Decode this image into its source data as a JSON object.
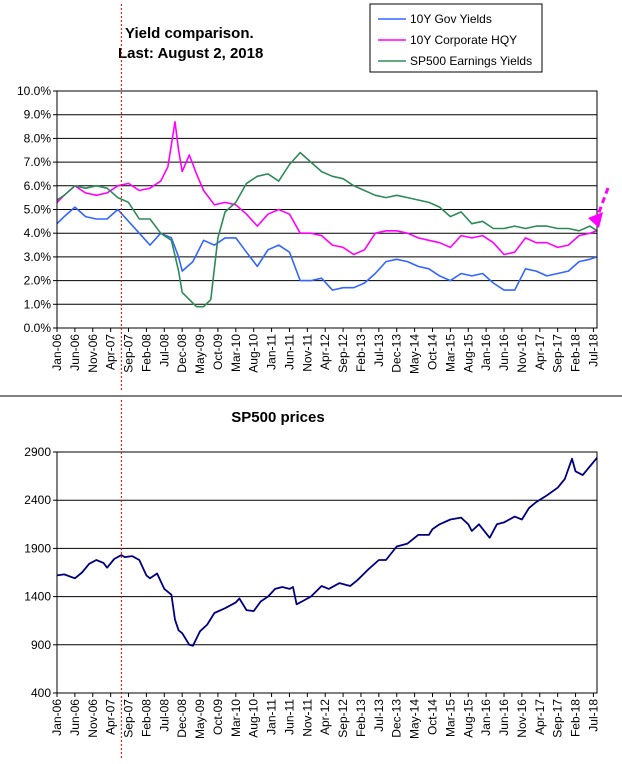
{
  "chart_data": [
    {
      "type": "line",
      "title": "Yield comparison.",
      "subtitle": "Last: August 2, 2018",
      "ylim": [
        0,
        10
      ],
      "y_ticks": [
        "0.0%",
        "1.0%",
        "2.0%",
        "3.0%",
        "4.0%",
        "5.0%",
        "6.0%",
        "7.0%",
        "8.0%",
        "9.0%",
        "10.0%"
      ],
      "x_ticks": [
        "Jan-06",
        "Jun-06",
        "Nov-06",
        "Apr-07",
        "Sep-07",
        "Feb-08",
        "Jul-08",
        "Dec-08",
        "May-09",
        "Oct-09",
        "Mar-10",
        "Aug-10",
        "Jan-11",
        "Jun-11",
        "Nov-11",
        "Apr-12",
        "Sep-12",
        "Feb-13",
        "Jul-13",
        "Dec-13",
        "May-14",
        "Oct-14",
        "Mar-15",
        "Aug-15",
        "Jan-16",
        "Jun-16",
        "Nov-16",
        "Apr-17",
        "Sep-17",
        "Feb-18",
        "Jul-18"
      ],
      "x_range": [
        "2006-01",
        "2018-08"
      ],
      "grid": true,
      "legend_position": "top-right",
      "vertical_marker": "2007-07",
      "arrow_annotation": "pointing at last value, right edge",
      "series": [
        {
          "name": "10Y Gov Yields",
          "color": "#3366ff",
          "x": [
            "2006-01",
            "2006-03",
            "2006-06",
            "2006-09",
            "2006-12",
            "2007-03",
            "2007-06",
            "2007-09",
            "2007-12",
            "2008-03",
            "2008-06",
            "2008-09",
            "2008-11",
            "2008-12",
            "2009-03",
            "2009-06",
            "2009-09",
            "2009-12",
            "2010-03",
            "2010-06",
            "2010-09",
            "2010-12",
            "2011-03",
            "2011-06",
            "2011-09",
            "2011-12",
            "2012-03",
            "2012-06",
            "2012-09",
            "2012-12",
            "2013-03",
            "2013-06",
            "2013-09",
            "2013-12",
            "2014-03",
            "2014-06",
            "2014-09",
            "2014-12",
            "2015-03",
            "2015-06",
            "2015-09",
            "2015-12",
            "2016-03",
            "2016-06",
            "2016-09",
            "2016-12",
            "2017-03",
            "2017-06",
            "2017-09",
            "2017-12",
            "2018-03",
            "2018-06",
            "2018-08"
          ],
          "values": [
            4.4,
            4.7,
            5.1,
            4.7,
            4.6,
            4.6,
            5.0,
            4.5,
            4.0,
            3.5,
            4.0,
            3.8,
            3.0,
            2.4,
            2.8,
            3.7,
            3.5,
            3.8,
            3.8,
            3.2,
            2.6,
            3.3,
            3.5,
            3.2,
            2.0,
            2.0,
            2.1,
            1.6,
            1.7,
            1.7,
            1.9,
            2.3,
            2.8,
            2.9,
            2.8,
            2.6,
            2.5,
            2.2,
            2.0,
            2.3,
            2.2,
            2.3,
            1.9,
            1.6,
            1.6,
            2.5,
            2.4,
            2.2,
            2.3,
            2.4,
            2.8,
            2.9,
            3.0
          ]
        },
        {
          "name": "10Y Corporate HQY",
          "color": "#ff00ff",
          "x": [
            "2006-01",
            "2006-03",
            "2006-06",
            "2006-09",
            "2006-12",
            "2007-03",
            "2007-06",
            "2007-09",
            "2007-12",
            "2008-03",
            "2008-06",
            "2008-08",
            "2008-10",
            "2008-11",
            "2008-12",
            "2009-02",
            "2009-04",
            "2009-06",
            "2009-09",
            "2009-12",
            "2010-03",
            "2010-06",
            "2010-09",
            "2010-12",
            "2011-03",
            "2011-06",
            "2011-09",
            "2011-12",
            "2012-03",
            "2012-06",
            "2012-09",
            "2012-12",
            "2013-03",
            "2013-06",
            "2013-09",
            "2013-12",
            "2014-03",
            "2014-06",
            "2014-09",
            "2014-12",
            "2015-03",
            "2015-06",
            "2015-09",
            "2015-12",
            "2016-03",
            "2016-06",
            "2016-09",
            "2016-12",
            "2017-03",
            "2017-06",
            "2017-09",
            "2017-12",
            "2018-03",
            "2018-06",
            "2018-08"
          ],
          "values": [
            5.3,
            5.6,
            6.0,
            5.7,
            5.6,
            5.7,
            6.0,
            6.1,
            5.8,
            5.9,
            6.2,
            6.8,
            8.7,
            7.5,
            6.6,
            7.3,
            6.5,
            5.8,
            5.2,
            5.3,
            5.2,
            4.8,
            4.3,
            4.8,
            5.0,
            4.8,
            4.0,
            4.0,
            3.9,
            3.5,
            3.4,
            3.1,
            3.3,
            4.0,
            4.1,
            4.1,
            4.0,
            3.8,
            3.7,
            3.6,
            3.4,
            3.9,
            3.8,
            3.9,
            3.6,
            3.1,
            3.2,
            3.8,
            3.6,
            3.6,
            3.4,
            3.5,
            3.9,
            4.0,
            4.1
          ]
        },
        {
          "name": "SP500 Earnings Yields",
          "color": "#2e8b57",
          "x": [
            "2006-01",
            "2006-03",
            "2006-06",
            "2006-09",
            "2006-12",
            "2007-03",
            "2007-06",
            "2007-09",
            "2007-12",
            "2008-03",
            "2008-06",
            "2008-09",
            "2008-11",
            "2008-12",
            "2009-02",
            "2009-04",
            "2009-06",
            "2009-08",
            "2009-10",
            "2009-12",
            "2010-03",
            "2010-06",
            "2010-09",
            "2010-12",
            "2011-03",
            "2011-06",
            "2011-09",
            "2011-12",
            "2012-03",
            "2012-06",
            "2012-09",
            "2012-12",
            "2013-03",
            "2013-06",
            "2013-09",
            "2013-12",
            "2014-03",
            "2014-06",
            "2014-09",
            "2014-12",
            "2015-03",
            "2015-06",
            "2015-09",
            "2015-12",
            "2016-03",
            "2016-06",
            "2016-09",
            "2016-12",
            "2017-03",
            "2017-06",
            "2017-09",
            "2017-12",
            "2018-03",
            "2018-06",
            "2018-08"
          ],
          "values": [
            5.4,
            5.6,
            6.0,
            5.9,
            6.0,
            5.9,
            5.5,
            5.3,
            4.6,
            4.6,
            4.0,
            3.7,
            2.4,
            1.5,
            1.2,
            0.9,
            0.9,
            1.2,
            3.8,
            4.9,
            5.3,
            6.1,
            6.4,
            6.5,
            6.2,
            6.9,
            7.4,
            7.0,
            6.6,
            6.4,
            6.3,
            6.0,
            5.8,
            5.6,
            5.5,
            5.6,
            5.5,
            5.4,
            5.3,
            5.1,
            4.7,
            4.9,
            4.4,
            4.5,
            4.2,
            4.2,
            4.3,
            4.2,
            4.3,
            4.3,
            4.2,
            4.2,
            4.1,
            4.3,
            4.1
          ]
        }
      ]
    },
    {
      "type": "line",
      "title": "SP500 prices",
      "ylim": [
        400,
        2900
      ],
      "y_ticks": [
        "400",
        "900",
        "1400",
        "1900",
        "2400",
        "2900"
      ],
      "x_ticks": [
        "Jan-06",
        "Jun-06",
        "Nov-06",
        "Apr-07",
        "Sep-07",
        "Feb-08",
        "Jul-08",
        "Dec-08",
        "May-09",
        "Oct-09",
        "Mar-10",
        "Aug-10",
        "Jan-11",
        "Jun-11",
        "Nov-11",
        "Apr-12",
        "Sep-12",
        "Feb-13",
        "Jul-13",
        "Dec-13",
        "May-14",
        "Oct-14",
        "Mar-15",
        "Aug-15",
        "Jan-16",
        "Jun-16",
        "Nov-16",
        "Apr-17",
        "Sep-17",
        "Feb-18",
        "Jul-18"
      ],
      "x_range": [
        "2006-01",
        "2018-08"
      ],
      "grid": true,
      "vertical_marker": "2007-07",
      "series": [
        {
          "color": "#000080",
          "x": [
            "2006-01",
            "2006-03",
            "2006-06",
            "2006-08",
            "2006-10",
            "2006-12",
            "2007-02",
            "2007-03",
            "2007-05",
            "2007-07",
            "2007-08",
            "2007-10",
            "2007-12",
            "2008-02",
            "2008-03",
            "2008-05",
            "2008-07",
            "2008-09",
            "2008-10",
            "2008-11",
            "2008-12",
            "2009-02",
            "2009-03",
            "2009-05",
            "2009-07",
            "2009-09",
            "2009-12",
            "2010-03",
            "2010-04",
            "2010-06",
            "2010-08",
            "2010-10",
            "2010-12",
            "2011-02",
            "2011-04",
            "2011-06",
            "2011-07",
            "2011-08",
            "2011-10",
            "2011-12",
            "2012-03",
            "2012-05",
            "2012-08",
            "2012-11",
            "2013-01",
            "2013-04",
            "2013-07",
            "2013-09",
            "2013-12",
            "2014-03",
            "2014-06",
            "2014-09",
            "2014-10",
            "2014-12",
            "2015-03",
            "2015-06",
            "2015-08",
            "2015-09",
            "2015-11",
            "2016-02",
            "2016-04",
            "2016-06",
            "2016-09",
            "2016-11",
            "2017-01",
            "2017-03",
            "2017-06",
            "2017-09",
            "2017-11",
            "2018-01",
            "2018-02",
            "2018-04",
            "2018-06",
            "2018-08"
          ],
          "values": [
            1620,
            1630,
            1590,
            1650,
            1740,
            1780,
            1750,
            1700,
            1790,
            1830,
            1810,
            1820,
            1780,
            1620,
            1590,
            1640,
            1480,
            1420,
            1160,
            1050,
            1020,
            900,
            890,
            1040,
            1110,
            1230,
            1280,
            1340,
            1380,
            1260,
            1250,
            1350,
            1400,
            1480,
            1500,
            1480,
            1500,
            1320,
            1360,
            1400,
            1510,
            1480,
            1540,
            1510,
            1570,
            1680,
            1780,
            1780,
            1920,
            1950,
            2040,
            2040,
            2100,
            2150,
            2200,
            2220,
            2150,
            2080,
            2150,
            2010,
            2150,
            2170,
            2230,
            2200,
            2320,
            2380,
            2450,
            2530,
            2620,
            2830,
            2700,
            2660,
            2750,
            2840
          ]
        }
      ]
    }
  ]
}
